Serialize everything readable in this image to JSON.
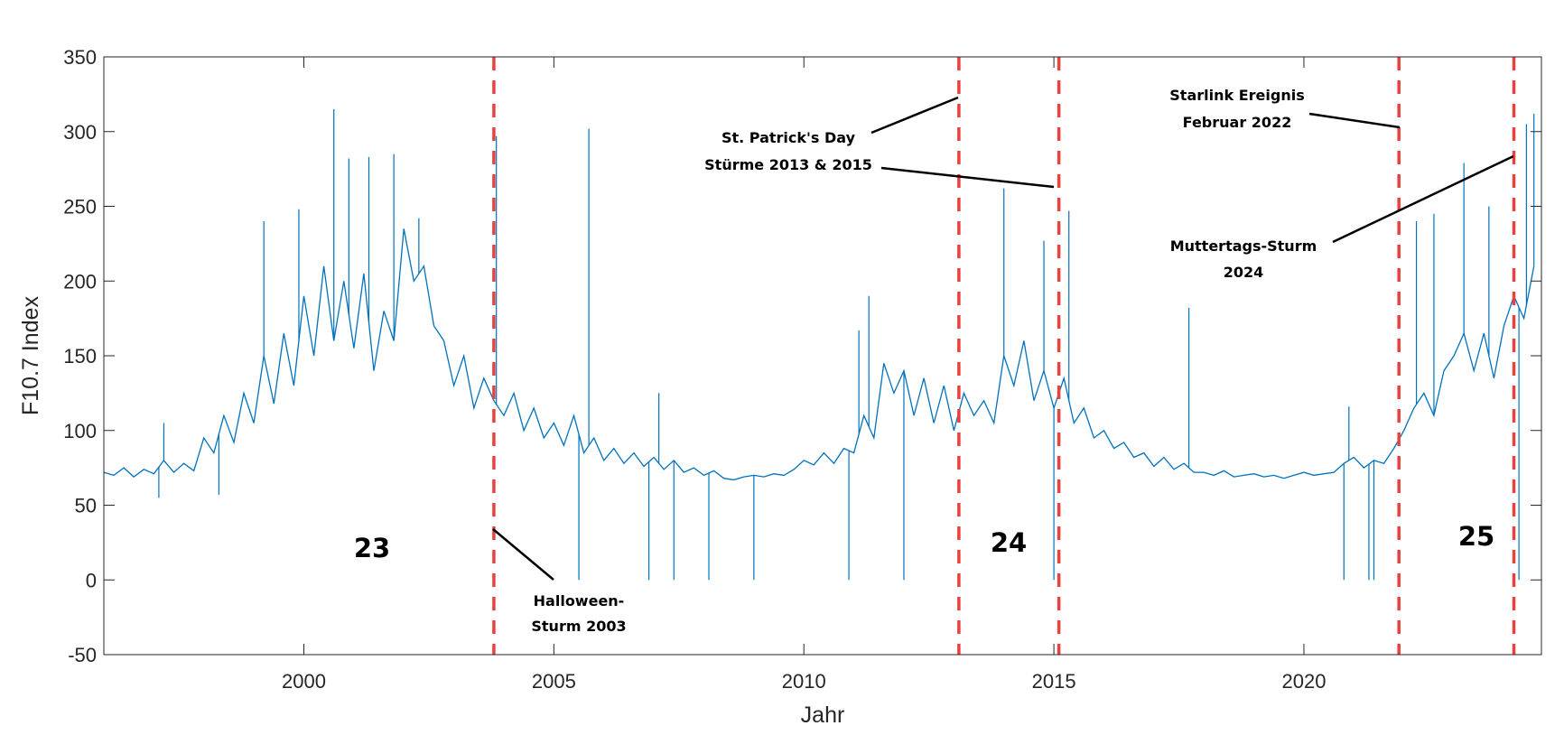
{
  "chart_data": {
    "type": "line",
    "xlabel": "Jahr",
    "ylabel": "F10.7 Index",
    "xlim": [
      1996,
      2024.75
    ],
    "ylim": [
      -50,
      350
    ],
    "xticks": [
      2000,
      2005,
      2010,
      2015,
      2020
    ],
    "yticks": [
      -50,
      0,
      50,
      100,
      150,
      200,
      250,
      300,
      350
    ],
    "grid": false,
    "line_color": "#0072BD",
    "event_line_color": "#E8413E",
    "series": [
      {
        "x_start": 1996.0,
        "x_step": 0.2,
        "values": [
          72,
          70,
          75,
          69,
          74,
          71,
          80,
          72,
          78,
          73,
          95,
          85,
          110,
          92,
          125,
          105,
          150,
          118,
          165,
          130,
          190,
          150,
          210,
          160,
          200,
          155,
          205,
          140,
          180,
          160,
          235,
          200,
          210,
          170,
          160,
          130,
          150,
          115,
          135,
          120,
          110,
          125,
          100,
          115,
          95,
          105,
          90,
          110,
          85,
          95,
          80,
          88,
          78,
          85,
          76,
          82,
          74,
          80,
          72,
          75,
          70,
          73,
          68,
          67,
          69,
          70,
          69,
          71,
          70,
          74,
          80,
          77,
          85,
          78,
          88,
          85,
          110,
          95,
          145,
          125,
          140,
          110,
          135,
          105,
          130,
          100,
          125,
          110,
          120,
          105,
          150,
          130,
          160,
          120,
          140,
          115,
          135,
          105,
          115,
          95,
          100,
          88,
          92,
          82,
          85,
          76,
          82,
          74,
          78,
          72,
          72,
          70,
          73,
          69,
          70,
          71,
          69,
          70,
          68,
          70,
          72,
          70,
          71,
          72,
          78,
          82,
          75,
          80,
          78,
          88,
          100,
          115,
          125,
          110,
          140,
          150,
          165,
          140,
          165,
          135,
          170,
          190,
          175,
          210
        ]
      }
    ],
    "spikes": [
      [
        1997.2,
        105
      ],
      [
        1997.1,
        55
      ],
      [
        1998.3,
        57
      ],
      [
        1999.2,
        240
      ],
      [
        1999.9,
        248
      ],
      [
        2000.6,
        315
      ],
      [
        2000.9,
        282
      ],
      [
        2001.3,
        283
      ],
      [
        2001.8,
        285
      ],
      [
        2002.3,
        242
      ],
      [
        2003.85,
        297
      ],
      [
        2005.5,
        0
      ],
      [
        2005.7,
        302
      ],
      [
        2006.9,
        0
      ],
      [
        2007.1,
        125
      ],
      [
        2007.4,
        0
      ],
      [
        2008.1,
        0
      ],
      [
        2009.0,
        0
      ],
      [
        2010.9,
        0
      ],
      [
        2011.1,
        167
      ],
      [
        2011.3,
        190
      ],
      [
        2012.0,
        0
      ],
      [
        2014.0,
        262
      ],
      [
        2014.8,
        227
      ],
      [
        2015.0,
        0
      ],
      [
        2015.3,
        247
      ],
      [
        2017.7,
        182
      ],
      [
        2020.8,
        0
      ],
      [
        2020.9,
        116
      ],
      [
        2021.3,
        0
      ],
      [
        2021.4,
        0
      ],
      [
        2022.25,
        240
      ],
      [
        2022.6,
        245
      ],
      [
        2023.2,
        279
      ],
      [
        2023.7,
        250
      ],
      [
        2024.3,
        0
      ],
      [
        2024.45,
        305
      ],
      [
        2024.6,
        312
      ]
    ],
    "event_lines": [
      2003.8,
      2013.1,
      2015.1,
      2021.9,
      2024.2
    ],
    "annotations": [
      {
        "lines": [
          "Halloween-",
          "Sturm 2003"
        ]
      },
      {
        "lines": [
          "St. Patrick's Day",
          "Stürme 2013 & 2015"
        ]
      },
      {
        "lines": [
          "Starlink Ereignis",
          "Februar 2022"
        ]
      },
      {
        "lines": [
          "Muttertags-Sturm",
          "2024"
        ]
      }
    ],
    "cycle_labels": [
      "23",
      "24",
      "25"
    ]
  }
}
